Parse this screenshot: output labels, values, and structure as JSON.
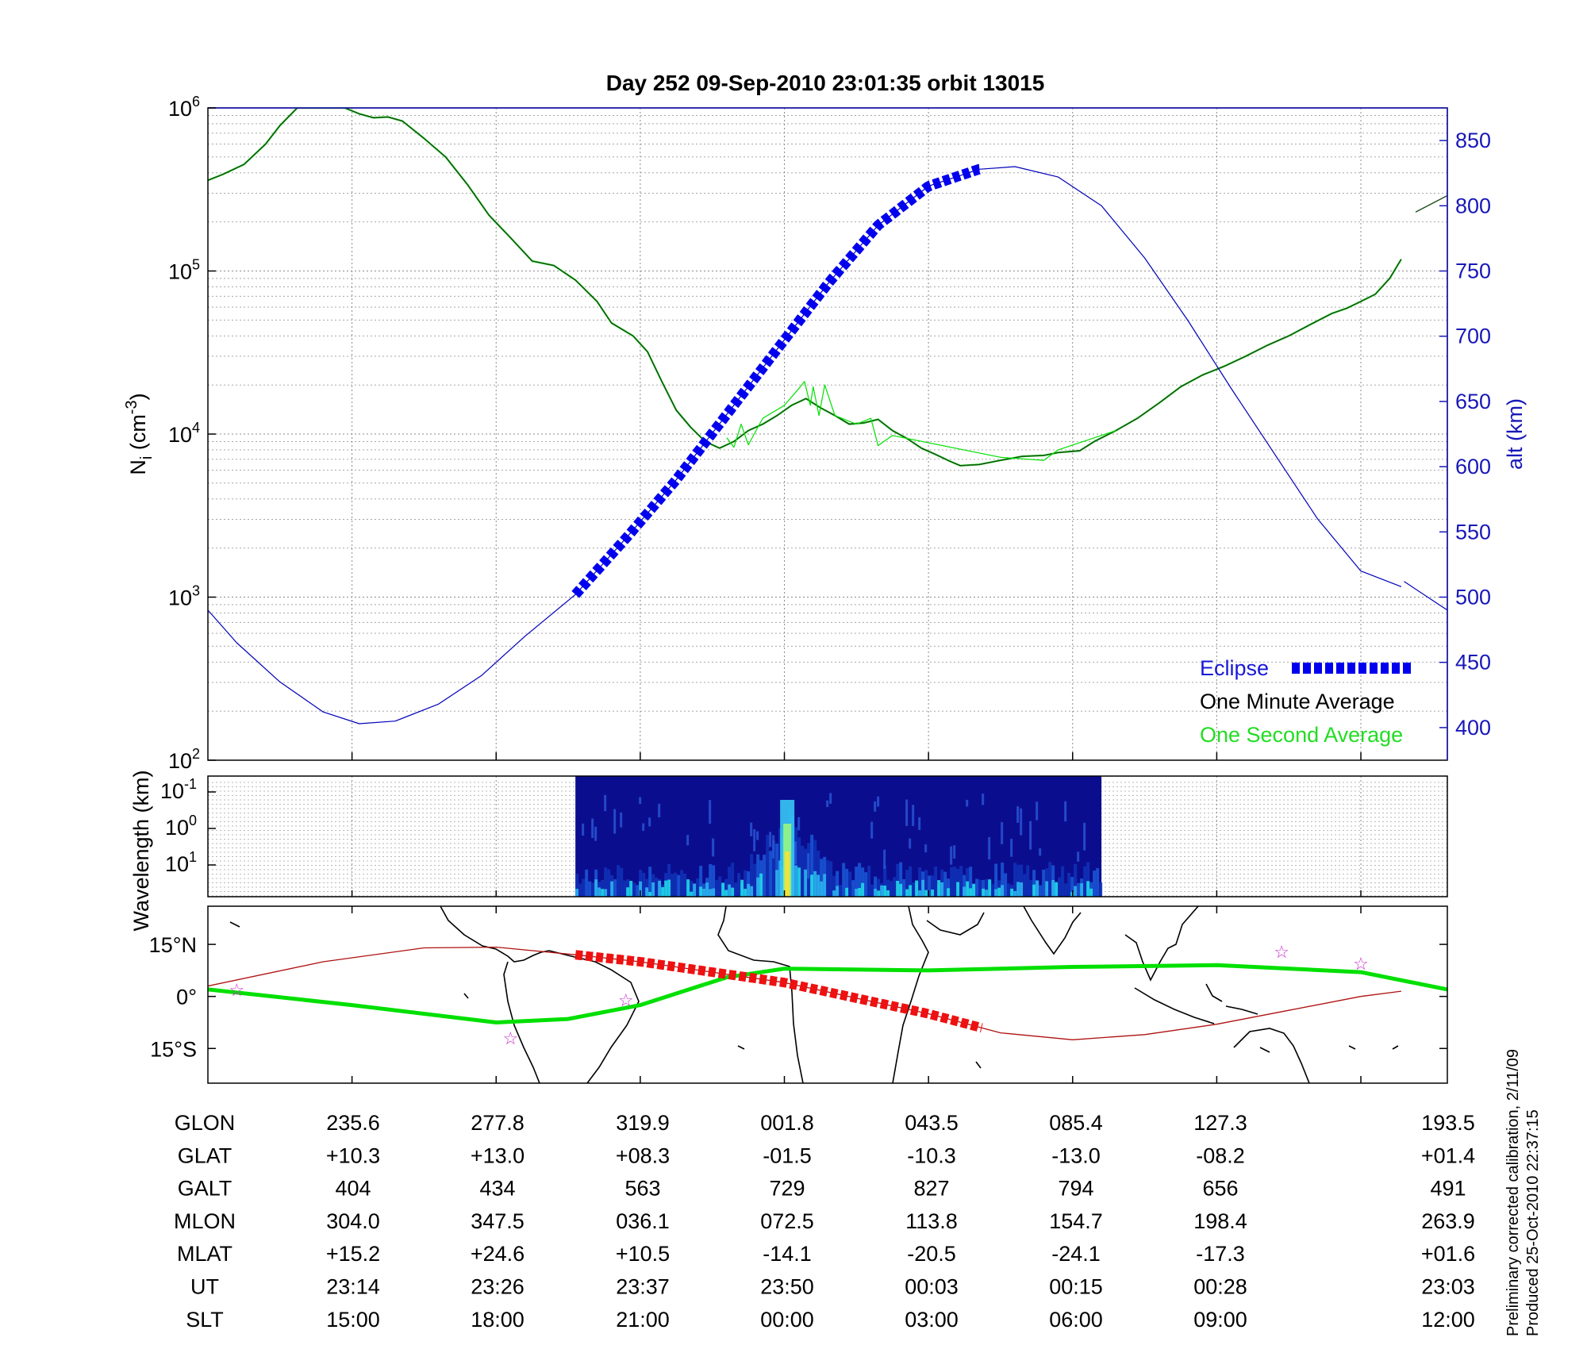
{
  "title": "Day 252  09-Sep-2010 23:01:35   orbit 13015",
  "colors": {
    "density_minute": "#1e4d1e",
    "density_second": "#00e000",
    "altitude": "#0000b8",
    "eclipse": "#0000ee",
    "ground_track": "#00e000",
    "magnetic_equator": "#b01010",
    "eclipse_track": "#ee1111",
    "stars": "#cc33cc",
    "axis_blue": "#1818b8"
  },
  "chart_data": [
    {
      "type": "line",
      "panel": "density_altitude",
      "title": "Day 252  09-Sep-2010 23:01:35   orbit 13015",
      "ylabel": "N_i (cm^-3)",
      "ylabel_main": "N",
      "ylabel_sub": "i",
      "ylabel_unit_open": " (cm",
      "ylabel_unit_exp": "-3",
      "ylabel_unit_close": ")",
      "yscale": "log",
      "ylim": [
        100,
        1000000
      ],
      "y_ticks": [
        {
          "base": "10",
          "exp": "2",
          "value": 100
        },
        {
          "base": "10",
          "exp": "3",
          "value": 1000
        },
        {
          "base": "10",
          "exp": "4",
          "value": 10000
        },
        {
          "base": "10",
          "exp": "5",
          "value": 100000
        },
        {
          "base": "10",
          "exp": "6",
          "value": 1000000
        }
      ],
      "y2label": "alt (km)",
      "y2lim": [
        375,
        875
      ],
      "y2_ticks": [
        "400",
        "450",
        "500",
        "550",
        "600",
        "650",
        "700",
        "750",
        "800",
        "850"
      ],
      "xlim": [
        0,
        8.6
      ],
      "x_tick_positions": [
        1,
        2,
        3,
        4,
        5,
        6,
        7,
        8
      ],
      "grid": true,
      "legend_position": "bottom-right",
      "series": [
        {
          "name": "One Minute Average",
          "axis": "left",
          "points": [
            [
              0,
              360000
            ],
            [
              0.1,
              390000
            ],
            [
              0.25,
              450000
            ],
            [
              0.4,
              600000
            ],
            [
              0.5,
              780000
            ],
            [
              0.62,
              1000000
            ],
            [
              0.95,
              1000000
            ],
            [
              1.05,
              920000
            ],
            [
              1.15,
              870000
            ],
            [
              1.25,
              880000
            ],
            [
              1.35,
              830000
            ],
            [
              1.5,
              650000
            ],
            [
              1.65,
              500000
            ],
            [
              1.8,
              340000
            ],
            [
              1.95,
              220000
            ],
            [
              2.1,
              160000
            ],
            [
              2.25,
              115000
            ],
            [
              2.4,
              108000
            ],
            [
              2.55,
              88000
            ],
            [
              2.7,
              65000
            ],
            [
              2.8,
              48000
            ],
            [
              2.95,
              40000
            ],
            [
              3.05,
              32000
            ],
            [
              3.15,
              21000
            ],
            [
              3.25,
              14000
            ],
            [
              3.35,
              11000
            ],
            [
              3.45,
              9000
            ],
            [
              3.55,
              8200
            ],
            [
              3.65,
              9000
            ],
            [
              3.75,
              10500
            ],
            [
              3.85,
              11500
            ],
            [
              3.95,
              13000
            ],
            [
              4.05,
              15000
            ],
            [
              4.15,
              16500
            ],
            [
              4.25,
              14500
            ],
            [
              4.35,
              13000
            ],
            [
              4.45,
              11500
            ],
            [
              4.55,
              11700
            ],
            [
              4.65,
              12300
            ],
            [
              4.75,
              10500
            ],
            [
              4.85,
              9400
            ],
            [
              4.95,
              8200
            ],
            [
              5.05,
              7500
            ],
            [
              5.15,
              6800
            ],
            [
              5.22,
              6400
            ],
            [
              5.35,
              6500
            ],
            [
              5.5,
              6900
            ],
            [
              5.65,
              7300
            ],
            [
              5.8,
              7400
            ],
            [
              5.9,
              7700
            ],
            [
              6.05,
              7900
            ],
            [
              6.15,
              9000
            ],
            [
              6.3,
              10500
            ],
            [
              6.45,
              12500
            ],
            [
              6.6,
              15500
            ],
            [
              6.75,
              19500
            ],
            [
              6.9,
              23000
            ],
            [
              7.05,
              26000
            ],
            [
              7.2,
              30000
            ],
            [
              7.35,
              35000
            ],
            [
              7.5,
              40000
            ],
            [
              7.65,
              47000
            ],
            [
              7.8,
              55000
            ],
            [
              7.9,
              59000
            ],
            [
              8.0,
              65000
            ],
            [
              8.1,
              72000
            ],
            [
              8.2,
              90000
            ],
            [
              8.28,
              118000
            ]
          ]
        },
        {
          "name": "One Second Average",
          "axis": "left",
          "points": [
            [
              3.6,
              9500
            ],
            [
              3.65,
              8300
            ],
            [
              3.7,
              11500
            ],
            [
              3.75,
              8600
            ],
            [
              3.85,
              12500
            ],
            [
              4.0,
              15000
            ],
            [
              4.1,
              19000
            ],
            [
              4.14,
              21000
            ],
            [
              4.18,
              15000
            ],
            [
              4.2,
              19500
            ],
            [
              4.24,
              13000
            ],
            [
              4.28,
              20000
            ],
            [
              4.35,
              13000
            ],
            [
              4.5,
              11500
            ],
            [
              4.6,
              12500
            ],
            [
              4.65,
              8500
            ],
            [
              4.75,
              9800
            ],
            [
              5.5,
              7200
            ],
            [
              5.8,
              6900
            ],
            [
              5.9,
              8000
            ],
            [
              6.3,
              10500
            ]
          ]
        },
        {
          "name": "altitude",
          "axis": "right",
          "points": [
            [
              0,
              490
            ],
            [
              0.2,
              465
            ],
            [
              0.5,
              435
            ],
            [
              0.8,
              412
            ],
            [
              1.05,
              403
            ],
            [
              1.3,
              405
            ],
            [
              1.6,
              418
            ],
            [
              1.9,
              440
            ],
            [
              2.2,
              470
            ],
            [
              2.55,
              502
            ],
            [
              2.9,
              545
            ],
            [
              3.25,
              590
            ],
            [
              3.6,
              640
            ],
            [
              3.95,
              690
            ],
            [
              4.3,
              740
            ],
            [
              4.65,
              785
            ],
            [
              5.0,
              815
            ],
            [
              5.35,
              828
            ],
            [
              5.6,
              830
            ],
            [
              5.9,
              822
            ],
            [
              6.2,
              800
            ],
            [
              6.5,
              760
            ],
            [
              6.8,
              712
            ],
            [
              7.1,
              660
            ],
            [
              7.4,
              610
            ],
            [
              7.7,
              560
            ],
            [
              8.0,
              520
            ],
            [
              8.28,
              508
            ]
          ]
        },
        {
          "name": "altitude_wrap",
          "axis": "right",
          "points": [
            [
              8.3,
              512
            ],
            [
              8.6,
              490
            ]
          ]
        },
        {
          "name": "density_wrap",
          "axis": "left",
          "points": [
            [
              8.38,
              230000
            ],
            [
              8.6,
              290000
            ]
          ]
        },
        {
          "name": "Eclipse",
          "axis": "right",
          "x_range": [
            2.55,
            5.37
          ]
        }
      ]
    },
    {
      "type": "heatmap",
      "panel": "wavelength_spectrogram",
      "ylabel": "Wavelength (km)",
      "y_ticks": [
        {
          "base": "10",
          "exp": "-1"
        },
        {
          "base": "10",
          "exp": "0"
        },
        {
          "base": "10",
          "exp": "1"
        }
      ],
      "x_range": [
        2.55,
        6.2
      ],
      "bright_feature_x": 4.02,
      "grid": true
    },
    {
      "type": "line",
      "panel": "map",
      "y_ticks": [
        "15°N",
        "0°",
        "15°S"
      ],
      "y_values": [
        15,
        0,
        -15
      ],
      "ylim": [
        -25,
        26
      ],
      "series": [
        {
          "name": "ground_track",
          "points": [
            [
              0,
              2
            ],
            [
              1,
              -2.5
            ],
            [
              2,
              -7.5
            ],
            [
              2.5,
              -6.5
            ],
            [
              3,
              -2.5
            ],
            [
              3.6,
              5.5
            ],
            [
              4,
              8
            ],
            [
              5,
              7.5
            ],
            [
              6,
              8.5
            ],
            [
              7,
              9
            ],
            [
              8,
              7
            ],
            [
              8.6,
              2
            ]
          ]
        },
        {
          "name": "magnetic_equator",
          "points": [
            [
              0,
              3
            ],
            [
              0.8,
              10
            ],
            [
              1.5,
              14
            ],
            [
              2,
              14.2
            ],
            [
              2.55,
              12
            ],
            [
              3,
              10
            ],
            [
              4,
              4
            ],
            [
              5,
              -5
            ],
            [
              5.5,
              -10.5
            ],
            [
              6,
              -12.5
            ],
            [
              6.5,
              -11
            ],
            [
              7,
              -8
            ],
            [
              7.5,
              -4
            ],
            [
              8,
              0
            ],
            [
              8.28,
              1.5
            ]
          ]
        },
        {
          "name": "eclipse_track",
          "x_range": [
            2.55,
            5.37
          ]
        },
        {
          "name": "stars",
          "points": [
            [
              0.2,
              2
            ],
            [
              2.1,
              -12
            ],
            [
              2.9,
              -1
            ],
            [
              7.45,
              13
            ],
            [
              8.0,
              9.5
            ]
          ]
        }
      ]
    },
    {
      "type": "table",
      "panel": "orbit_table",
      "rows": [
        {
          "label": "GLON",
          "values": [
            "235.6",
            "277.8",
            "319.9",
            "001.8",
            "043.5",
            "085.4",
            "127.3",
            "193.5"
          ]
        },
        {
          "label": "GLAT",
          "values": [
            "+10.3",
            "+13.0",
            "+08.3",
            "-01.5",
            "-10.3",
            "-13.0",
            "-08.2",
            "+01.4"
          ]
        },
        {
          "label": "GALT",
          "values": [
            "404",
            "434",
            "563",
            "729",
            "827",
            "794",
            "656",
            "491"
          ]
        },
        {
          "label": "MLON",
          "values": [
            "304.0",
            "347.5",
            "036.1",
            "072.5",
            "113.8",
            "154.7",
            "198.4",
            "263.9"
          ]
        },
        {
          "label": "MLAT",
          "values": [
            "+15.2",
            "+24.6",
            "+10.5",
            "-14.1",
            "-20.5",
            "-24.1",
            "-17.3",
            "+01.6"
          ]
        },
        {
          "label": "UT",
          "values": [
            "23:14",
            "23:26",
            "23:37",
            "23:50",
            "00:03",
            "00:15",
            "00:28",
            "23:03"
          ]
        },
        {
          "label": "SLT",
          "values": [
            "15:00",
            "18:00",
            "21:00",
            "00:00",
            "03:00",
            "06:00",
            "09:00",
            "12:00"
          ]
        }
      ]
    }
  ],
  "legend": {
    "eclipse": "Eclipse",
    "minute": "One Minute Average",
    "second": "One Second Average"
  },
  "side_note": {
    "line1": "Preliminary corrected calibration, 2/11/09",
    "line2": "Produced 25-Oct-2010 22:37:15"
  }
}
